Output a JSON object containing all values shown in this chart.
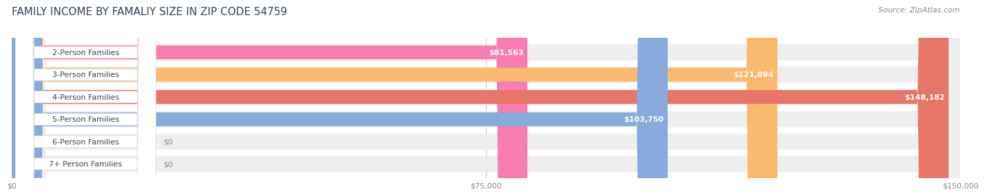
{
  "title": "FAMILY INCOME BY FAMALIY SIZE IN ZIP CODE 54759",
  "source": "Source: ZipAtlas.com",
  "categories": [
    "2-Person Families",
    "3-Person Families",
    "4-Person Families",
    "5-Person Families",
    "6-Person Families",
    "7+ Person Families"
  ],
  "values": [
    81563,
    121094,
    148182,
    103750,
    0,
    0
  ],
  "bar_colors": [
    "#f97cb0",
    "#f9b96e",
    "#e8756a",
    "#88aadc",
    "#c9a8dc",
    "#7dcfce"
  ],
  "bar_track_color": "#eeeeee",
  "value_labels": [
    "$81,563",
    "$121,094",
    "$148,182",
    "$103,750",
    "$0",
    "$0"
  ],
  "xlim": [
    0,
    150000
  ],
  "xticks": [
    0,
    75000,
    150000
  ],
  "xtick_labels": [
    "$0",
    "$75,000",
    "$150,000"
  ],
  "background_color": "#ffffff",
  "title_color": "#334455",
  "title_fontsize": 11,
  "source_fontsize": 8,
  "label_fontsize": 8,
  "value_fontsize": 8
}
